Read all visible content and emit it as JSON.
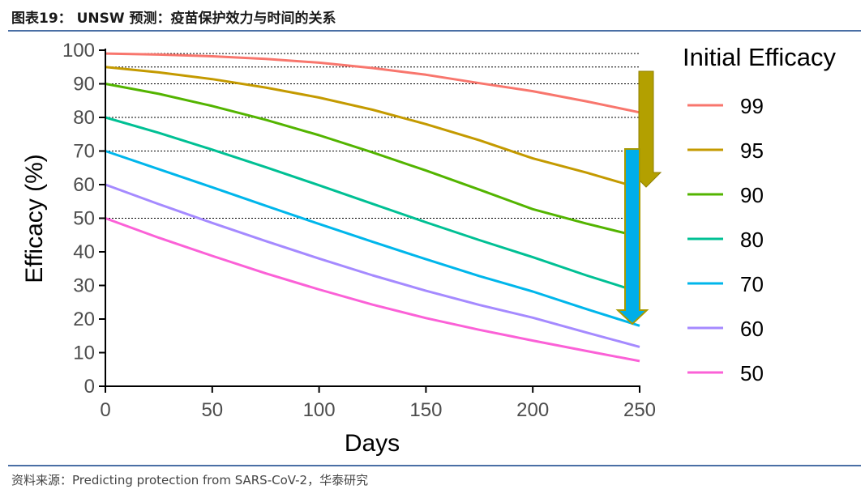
{
  "header": {
    "title": "图表19：  UNSW 预测：疫苗保护效力与时间的关系"
  },
  "footer": {
    "source": "资料来源：Predicting protection from SARS-CoV-2，华泰研究"
  },
  "colors": {
    "rule": "#4a6fa5",
    "arrow_olive": "#b3a000",
    "arrow_blue": "#00aee8",
    "gridline": "#000000"
  },
  "chart_data": {
    "type": "line",
    "title": "",
    "xlabel": "Days",
    "ylabel": "Efficacy (%)",
    "xlim": [
      0,
      250
    ],
    "ylim": [
      0,
      100
    ],
    "xticks": [
      0,
      50,
      100,
      150,
      200,
      250
    ],
    "yticks": [
      0,
      10,
      20,
      30,
      40,
      50,
      60,
      70,
      80,
      90,
      100
    ],
    "dashed_reference_lines": [
      50,
      70,
      80,
      90,
      95,
      99
    ],
    "x": [
      0,
      25,
      50,
      75,
      100,
      125,
      150,
      175,
      200,
      225,
      250
    ],
    "legend": {
      "title": "Initial Efficacy",
      "position": "right"
    },
    "series": [
      {
        "name": "99",
        "color": "#f8766d",
        "values": [
          99.0,
          98.7,
          98.2,
          97.4,
          96.3,
          94.7,
          92.7,
          90.2,
          87.8,
          84.8,
          81.5
        ]
      },
      {
        "name": "95",
        "color": "#c49a00",
        "values": [
          95.0,
          93.4,
          91.4,
          88.9,
          85.9,
          82.3,
          78.0,
          73.2,
          67.8,
          63.6,
          59.0
        ]
      },
      {
        "name": "90",
        "color": "#53b400",
        "values": [
          90.0,
          87.0,
          83.4,
          79.3,
          74.7,
          69.6,
          64.2,
          58.5,
          52.7,
          48.4,
          44.5
        ]
      },
      {
        "name": "80",
        "color": "#00c094",
        "values": [
          80.0,
          75.4,
          70.4,
          65.2,
          59.8,
          54.3,
          48.8,
          43.5,
          38.4,
          33.0,
          28.0
        ]
      },
      {
        "name": "70",
        "color": "#00b6eb",
        "values": [
          70.0,
          64.6,
          59.2,
          53.7,
          48.3,
          43.0,
          37.8,
          32.8,
          28.2,
          23.0,
          18.0
        ]
      },
      {
        "name": "60",
        "color": "#a58aff",
        "values": [
          60.0,
          54.2,
          48.6,
          43.2,
          38.0,
          33.0,
          28.4,
          24.2,
          20.4,
          16.0,
          11.7
        ]
      },
      {
        "name": "50",
        "color": "#fb61d7",
        "values": [
          50.0,
          44.2,
          38.8,
          33.6,
          28.8,
          24.3,
          20.3,
          16.8,
          13.6,
          10.5,
          7.5
        ]
      }
    ]
  }
}
